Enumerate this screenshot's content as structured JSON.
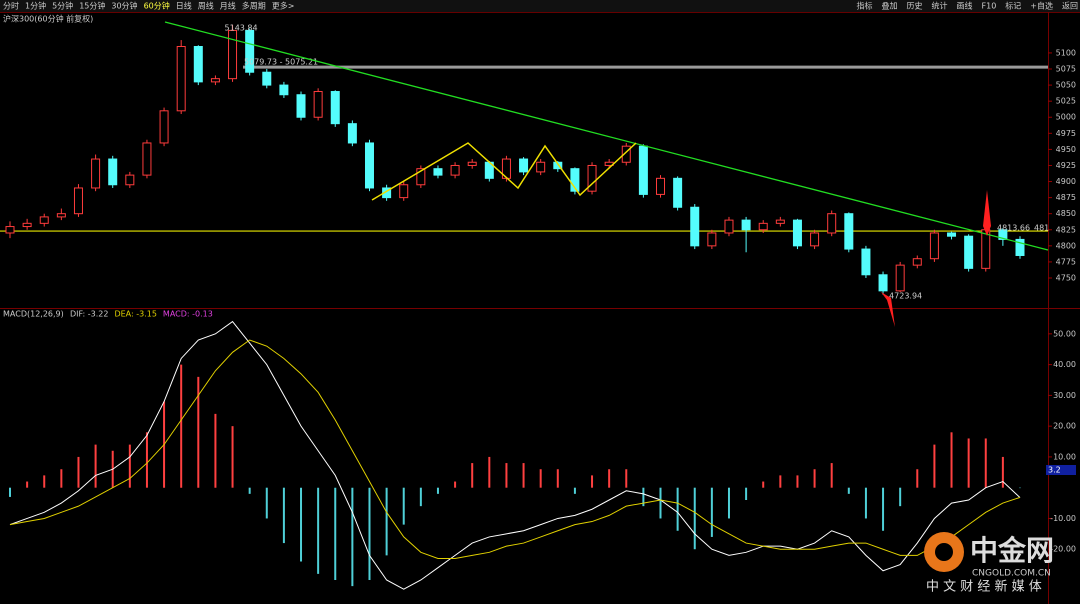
{
  "toolbar": {
    "periods": [
      "分时",
      "1分钟",
      "5分钟",
      "15分钟",
      "30分钟",
      "60分钟",
      "日线",
      "周线",
      "月线",
      "多周期",
      "更多>"
    ],
    "tools": [
      "指标",
      "叠加",
      "历史",
      "统计",
      "画线",
      "F10",
      "标记",
      "+自选",
      "返回"
    ]
  },
  "chart_data": [
    {
      "type": "candlestick",
      "title": "沪深300(60分钟 前复权)",
      "open": [
        4820,
        4830,
        4835,
        4845,
        4850,
        4890,
        4935,
        4895,
        4910,
        4960,
        5010,
        5110,
        5055,
        5060,
        5135,
        5070,
        5050,
        5035,
        5000,
        5040,
        4990,
        4960,
        4890,
        4875,
        4895,
        4920,
        4910,
        4925,
        4930,
        4905,
        4935,
        4915,
        4930,
        4920,
        4885,
        4925,
        4930,
        4955,
        4880,
        4905,
        4860,
        4800,
        4820,
        4840,
        4825,
        4835,
        4840,
        4800,
        4820,
        4850,
        4795,
        4755,
        4730,
        4770,
        4780,
        4820,
        4815,
        4765,
        4825,
        4810
      ],
      "high": [
        4838,
        4842,
        4850,
        4858,
        4896,
        4942,
        4940,
        4915,
        4965,
        5015,
        5120,
        5112,
        5065,
        5143.84,
        5138,
        5075,
        5055,
        5040,
        5045,
        5042,
        4995,
        4965,
        4895,
        4900,
        4925,
        4925,
        4930,
        4935,
        4932,
        4940,
        4938,
        4935,
        4932,
        4922,
        4930,
        4935,
        4960,
        4958,
        4910,
        4908,
        4865,
        4825,
        4845,
        4845,
        4840,
        4845,
        4842,
        4825,
        4855,
        4852,
        4800,
        4760,
        4775,
        4785,
        4825,
        4822,
        4818,
        4830,
        4828,
        4815
      ],
      "low": [
        4812,
        4825,
        4830,
        4840,
        4845,
        4885,
        4890,
        4890,
        4905,
        4955,
        5005,
        5050,
        5050,
        5055,
        5065,
        5045,
        5030,
        4995,
        4995,
        4985,
        4955,
        4885,
        4870,
        4870,
        4890,
        4905,
        4905,
        4920,
        4900,
        4900,
        4910,
        4910,
        4915,
        4880,
        4880,
        4920,
        4925,
        4875,
        4875,
        4855,
        4795,
        4795,
        4815,
        4790,
        4820,
        4830,
        4795,
        4795,
        4815,
        4790,
        4750,
        4723.94,
        4728,
        4765,
        4775,
        4810,
        4760,
        4760,
        4800,
        4780
      ],
      "close": [
        4830,
        4835,
        4845,
        4850,
        4890,
        4935,
        4895,
        4910,
        4960,
        5010,
        5110,
        5055,
        5060,
        5135,
        5070,
        5050,
        5035,
        5000,
        5040,
        4990,
        4960,
        4890,
        4875,
        4895,
        4920,
        4910,
        4925,
        4930,
        4905,
        4935,
        4915,
        4930,
        4920,
        4885,
        4925,
        4930,
        4955,
        4880,
        4905,
        4860,
        4800,
        4820,
        4840,
        4825,
        4835,
        4840,
        4800,
        4820,
        4850,
        4795,
        4755,
        4730,
        4770,
        4780,
        4820,
        4815,
        4765,
        4825,
        4810,
        4785
      ],
      "up_color": "#ff3c3c",
      "down_color": "#54fcfc",
      "ylim": [
        4708,
        5159
      ],
      "yticks": [
        4750,
        4775,
        4800,
        4825,
        4850,
        4875,
        4900,
        4925,
        4950,
        4975,
        5000,
        5025,
        5050,
        5075,
        5100
      ],
      "reference_lines": [
        {
          "value": 5078,
          "color": "#9a9a9a"
        },
        {
          "value": 4823,
          "color": "#e8e800"
        }
      ],
      "annotations": [
        "5143.84",
        "5079.73 - 5075.21",
        "4723.94",
        "4813.66",
        "481"
      ]
    },
    {
      "type": "macd",
      "title": "MACD(12,26,9)",
      "legend": [
        "DIF: -3.22",
        "DEA: -3.15",
        "MACD: -0.13"
      ],
      "series": [
        {
          "color": "#ffffff",
          "values": [
            -12,
            -10,
            -8,
            -5,
            -1,
            4,
            6,
            10,
            17,
            28,
            42,
            48,
            50,
            54,
            47,
            40,
            30,
            20,
            12,
            4,
            -8,
            -22,
            -30,
            -33,
            -30,
            -26,
            -22,
            -18,
            -16,
            -15,
            -14,
            -12,
            -10,
            -9,
            -7,
            -4,
            -1,
            -2,
            -4,
            -8,
            -15,
            -20,
            -22,
            -21,
            -19,
            -19,
            -20,
            -18,
            -14,
            -16,
            -22,
            -27,
            -25,
            -18,
            -10,
            -5,
            -4,
            0,
            2,
            -3.22
          ]
        },
        {
          "color": "#e0d000",
          "values": [
            -12,
            -11,
            -10,
            -8,
            -6,
            -3,
            0,
            3,
            8,
            14,
            22,
            30,
            38,
            44,
            48,
            46,
            42,
            37,
            31,
            22,
            12,
            2,
            -8,
            -16,
            -21,
            -23,
            -23,
            -22,
            -21,
            -19,
            -18,
            -16,
            -14,
            -12,
            -11,
            -9,
            -6,
            -5,
            -4,
            -5,
            -8,
            -12,
            -15,
            -18,
            -19,
            -20,
            -20,
            -20,
            -19,
            -18,
            -18,
            -20,
            -22,
            -22,
            -19,
            -16,
            -12,
            -8,
            -5,
            -3.15
          ]
        },
        {
          "up_color": "#ff4040",
          "down_color": "#4fd0d8",
          "values": [
            -3,
            2,
            4,
            6,
            10,
            14,
            12,
            14,
            18,
            28,
            40,
            36,
            24,
            20,
            -2,
            -10,
            -18,
            -24,
            -28,
            -30,
            -32,
            -30,
            -22,
            -12,
            -6,
            -2,
            2,
            8,
            10,
            8,
            8,
            6,
            6,
            -2,
            4,
            6,
            6,
            -6,
            -10,
            -14,
            -20,
            -16,
            -10,
            -4,
            2,
            4,
            4,
            6,
            8,
            -2,
            -10,
            -14,
            -6,
            6,
            14,
            18,
            16,
            16,
            10,
            -0.13
          ]
        }
      ],
      "ylim": [
        -36.5,
        57.1
      ],
      "yticks": [
        {
          "value": 50,
          "label": "50.00"
        },
        {
          "value": 40,
          "label": "40.00"
        },
        {
          "value": 30,
          "label": "30.00"
        },
        {
          "value": 20,
          "label": "20.00"
        },
        {
          "value": 10,
          "label": "10.00"
        },
        {
          "value": -10,
          "label": "-10.00"
        },
        {
          "value": -20,
          "label": "-20.00"
        }
      ],
      "cursor_label": "3.2"
    }
  ],
  "watermark": {
    "brand": "中金网",
    "site": "CNGOLD.COM.CN",
    "slogan": "中 文 财 经 新 媒 体"
  }
}
